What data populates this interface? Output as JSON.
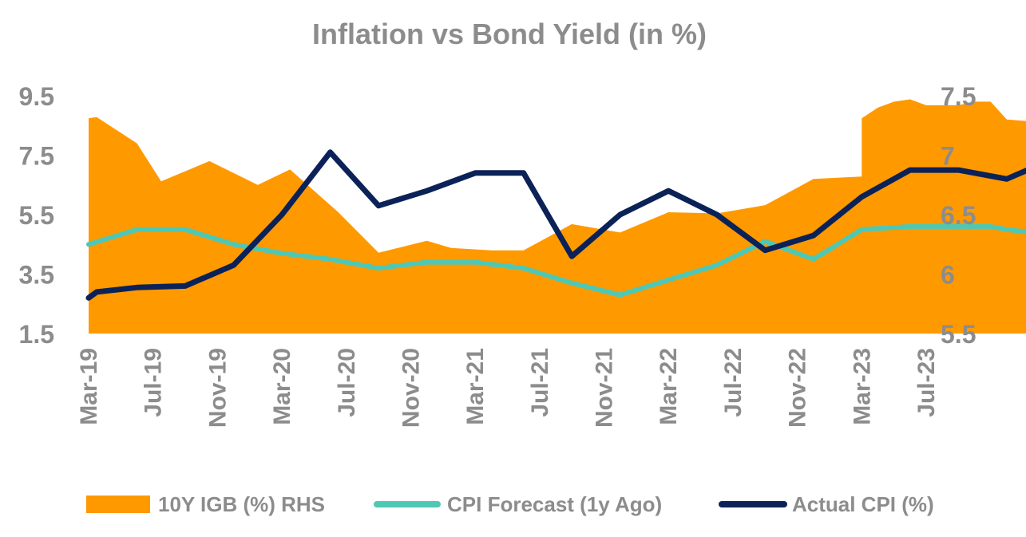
{
  "chart_data": {
    "type": "line+area",
    "title": "Inflation vs Bond Yield (in %)",
    "x": [
      "Mar-19",
      "Apr-19",
      "May-19",
      "Jun-19",
      "Jul-19",
      "Aug-19",
      "Sep-19",
      "Oct-19",
      "Nov-19",
      "Dec-19",
      "Jan-20",
      "Feb-20",
      "Mar-20",
      "Apr-20",
      "May-20",
      "Jun-20",
      "Jul-20",
      "Aug-20",
      "Sep-20",
      "Oct-20",
      "Nov-20",
      "Dec-20",
      "Jan-21",
      "Feb-21",
      "Mar-21",
      "Apr-21",
      "May-21",
      "Jun-21",
      "Jul-21",
      "Aug-21",
      "Sep-21",
      "Oct-21",
      "Nov-21",
      "Dec-21",
      "Jan-22",
      "Feb-22",
      "Mar-22",
      "Apr-22",
      "May-22",
      "Jun-22",
      "Jul-22",
      "Aug-22",
      "Sep-22",
      "Oct-22",
      "Nov-22",
      "Dec-22",
      "Jan-23",
      "Feb-23",
      "Mar-23",
      "Apr-23",
      "May-23",
      "Jun-23",
      "Jul-23"
    ],
    "x_tick_labels": [
      "Mar-19",
      "Jul-19",
      "Nov-19",
      "Mar-20",
      "Jul-20",
      "Nov-20",
      "Mar-21",
      "Jul-21",
      "Nov-21",
      "Mar-22",
      "Jul-22",
      "Nov-22",
      "Mar-23",
      "Jul-23"
    ],
    "left_axis": {
      "ylim": [
        1.5,
        9.5
      ],
      "ticks": [
        "9.5",
        "7.5",
        "5.5",
        "3.5",
        "1.5"
      ]
    },
    "right_axis": {
      "ylim": [
        5.5,
        7.5
      ],
      "ticks": [
        "7.5",
        "7",
        "6.5",
        "6",
        "5.5"
      ]
    },
    "series": [
      {
        "name": "10Y IGB (%) RHS",
        "kind": "area",
        "axis": "right",
        "color": "#ff9900",
        "x_index": [
          0,
          0.5,
          3,
          4.5,
          7.5,
          10.5,
          12.5,
          15.5,
          18,
          21,
          22.5,
          25,
          27,
          30,
          33,
          36,
          39,
          42,
          45,
          48,
          48,
          49,
          50,
          51,
          52,
          54,
          55,
          56,
          57,
          59,
          61,
          62,
          63,
          64,
          65,
          66,
          67,
          68,
          68
        ],
        "y_values": [
          7.31,
          7.32,
          7.1,
          6.78,
          6.95,
          6.75,
          6.88,
          6.52,
          6.18,
          6.28,
          6.22,
          6.2,
          6.2,
          6.42,
          6.35,
          6.52,
          6.51,
          6.58,
          6.8,
          6.82,
          7.31,
          7.4,
          7.45,
          7.47,
          7.42,
          7.42,
          7.45,
          7.45,
          7.3,
          7.28,
          7.29,
          7.28,
          7.29,
          7.33,
          7.28,
          7.18,
          7.15,
          7.2,
          7.25
        ]
      },
      {
        "name": "CPI Forecast (1y Ago)",
        "kind": "line",
        "axis": "left",
        "color": "#4ec8b4",
        "x_index": [
          0,
          3,
          6,
          9,
          12,
          15,
          18,
          21,
          24,
          27,
          30,
          33,
          36,
          39,
          42,
          45,
          48,
          51,
          54,
          56,
          57,
          60,
          63,
          64,
          65,
          66,
          67,
          68
        ],
        "y_values": [
          4.5,
          5.0,
          5.0,
          4.5,
          4.2,
          4.0,
          3.7,
          3.9,
          3.9,
          3.7,
          3.2,
          2.8,
          3.3,
          3.8,
          4.6,
          4.0,
          5.0,
          5.1,
          5.1,
          5.1,
          5.0,
          4.8,
          5.2,
          5.2,
          5.1,
          5.0,
          5.0,
          5.0
        ]
      },
      {
        "name": "Actual CPI (%)",
        "kind": "line",
        "axis": "left",
        "color": "#0b2258",
        "x_index": [
          0,
          0.5,
          3,
          6,
          9,
          12,
          15,
          18,
          21,
          24,
          27,
          30,
          33,
          36,
          39,
          42,
          45,
          48,
          51,
          54,
          57,
          60,
          63,
          64,
          65,
          66,
          67,
          68
        ],
        "y_values": [
          2.7,
          2.9,
          3.05,
          3.1,
          3.8,
          5.5,
          7.6,
          5.8,
          6.3,
          6.9,
          6.9,
          4.1,
          5.5,
          6.3,
          5.5,
          4.3,
          4.8,
          6.1,
          7.0,
          7.0,
          6.7,
          7.4,
          5.6,
          6.5,
          6.4,
          4.7,
          4.2,
          7.5
        ]
      }
    ],
    "legend": [
      "10Y IGB (%) RHS",
      "CPI Forecast (1y Ago)",
      "Actual CPI (%)"
    ],
    "legend_position": "bottom",
    "grid": false
  }
}
